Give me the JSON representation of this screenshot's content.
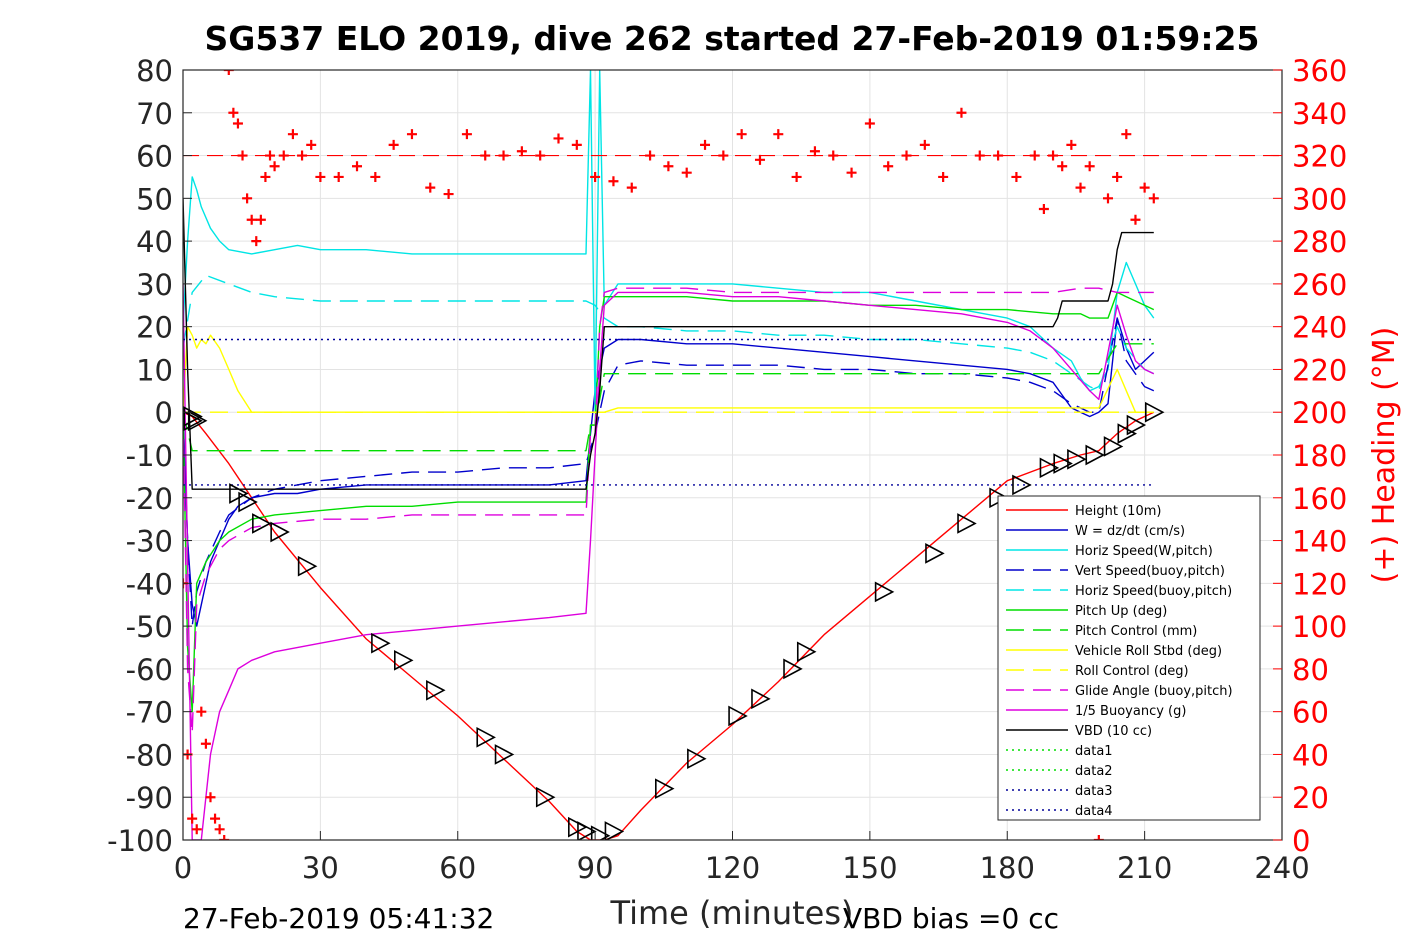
{
  "chart_data": {
    "type": "line",
    "title": "SG537 ELO 2019, dive 262 started 27-Feb-2019 01:59:25",
    "xlabel": "Time (minutes)",
    "ylabel_right": "(+) Heading (°M)",
    "xlim": [
      0,
      240
    ],
    "ylim_left": [
      -100,
      80
    ],
    "ylim_right": [
      0,
      360
    ],
    "xticks": [
      0,
      30,
      60,
      90,
      120,
      150,
      180,
      210,
      240
    ],
    "yticks_left": [
      80,
      70,
      60,
      50,
      40,
      30,
      20,
      10,
      0,
      -10,
      -20,
      -30,
      -40,
      -50,
      -60,
      -70,
      -80,
      -90,
      -100
    ],
    "yticks_right": [
      360,
      340,
      320,
      300,
      280,
      260,
      240,
      220,
      200,
      180,
      160,
      140,
      120,
      100,
      80,
      60,
      40,
      20,
      0
    ],
    "grid": true,
    "footer_left": "27-Feb-2019 05:41:32",
    "footer_right": "VBD bias =0 cc",
    "legend_position": "lower-right",
    "colors": {
      "height": "#ff0000",
      "w": "#0000cc",
      "horiz_w": "#00e5e5",
      "vert_buoy": "#0000cc",
      "horiz_buoy": "#00e5e5",
      "pitch_up": "#00dd00",
      "pitch_control": "#00dd00",
      "roll": "#ffff00",
      "roll_control": "#ffff00",
      "glide": "#dd00dd",
      "buoyancy": "#dd00dd",
      "vbd": "#000000",
      "heading": "#ff0000",
      "data4": "#000099"
    },
    "series": [
      {
        "name": "Height (10m)",
        "style": "solid",
        "color_key": "height",
        "x": [
          0,
          2,
          5,
          10,
          15,
          20,
          30,
          40,
          50,
          60,
          70,
          80,
          86,
          89,
          92,
          95,
          100,
          110,
          120,
          130,
          140,
          150,
          160,
          170,
          180,
          190,
          196,
          200,
          204,
          208,
          212
        ],
        "y": [
          0,
          -1,
          -5,
          -12,
          -20,
          -28,
          -41,
          -53,
          -62,
          -71,
          -81,
          -91,
          -98,
          -100,
          -100,
          -99,
          -93,
          -82,
          -73,
          -63,
          -52,
          -43,
          -34,
          -25,
          -16,
          -12,
          -10,
          -9,
          -5,
          -2,
          0
        ]
      },
      {
        "name": "W = dz/dt (cm/s)",
        "style": "solid",
        "color_key": "w",
        "x": [
          0,
          1,
          2,
          3,
          4,
          5,
          6,
          8,
          10,
          12,
          15,
          20,
          25,
          30,
          40,
          50,
          60,
          70,
          80,
          88,
          89,
          90,
          92,
          95,
          100,
          110,
          120,
          130,
          140,
          150,
          160,
          170,
          180,
          185,
          190,
          192,
          194,
          196,
          198,
          200,
          202,
          204,
          206,
          208,
          210,
          212
        ],
        "y": [
          0,
          -30,
          -45,
          -50,
          -45,
          -40,
          -35,
          -30,
          -25,
          -22,
          -20,
          -19,
          -19,
          -18,
          -17,
          -17,
          -17,
          -17,
          -17,
          -16,
          -5,
          5,
          15,
          17,
          17,
          16,
          16,
          15,
          14,
          13,
          12,
          11,
          10,
          9,
          7,
          4,
          1,
          0,
          -1,
          0,
          2,
          22,
          15,
          10,
          12,
          14
        ]
      },
      {
        "name": "Horiz Speed(W,pitch)",
        "style": "solid",
        "color_key": "horiz_w",
        "x": [
          0,
          1,
          2,
          3,
          4,
          6,
          8,
          10,
          15,
          20,
          25,
          30,
          40,
          50,
          60,
          70,
          80,
          88,
          89,
          90,
          91,
          92,
          95,
          100,
          110,
          120,
          130,
          140,
          150,
          160,
          170,
          180,
          185,
          190,
          194,
          196,
          198,
          200,
          202,
          204,
          206,
          208,
          210,
          212
        ],
        "y": [
          20,
          40,
          55,
          52,
          48,
          43,
          40,
          38,
          37,
          38,
          39,
          38,
          38,
          37,
          37,
          37,
          37,
          37,
          80,
          0,
          80,
          25,
          30,
          30,
          30,
          30,
          29,
          28,
          28,
          26,
          24,
          22,
          20,
          15,
          12,
          8,
          5,
          6,
          10,
          28,
          35,
          30,
          25,
          22
        ]
      },
      {
        "name": "Vert Speed(buoy,pitch)",
        "style": "dashed",
        "color_key": "vert_buoy",
        "x": [
          0,
          1,
          2,
          3,
          5,
          8,
          10,
          15,
          20,
          30,
          40,
          50,
          60,
          70,
          80,
          88,
          90,
          92,
          95,
          100,
          110,
          120,
          130,
          140,
          150,
          160,
          170,
          180,
          185,
          190,
          194,
          198,
          200,
          204,
          206,
          210,
          212
        ],
        "y": [
          0,
          -30,
          -50,
          -42,
          -35,
          -28,
          -24,
          -20,
          -18,
          -16,
          -15,
          -14,
          -14,
          -13,
          -13,
          -12,
          -5,
          5,
          11,
          12,
          11,
          11,
          11,
          10,
          10,
          9,
          9,
          8,
          7,
          5,
          2,
          0,
          0,
          22,
          12,
          6,
          5
        ]
      },
      {
        "name": "Horiz Speed(buoy,pitch)",
        "style": "dashed",
        "color_key": "horiz_buoy",
        "x": [
          0,
          2,
          5,
          10,
          15,
          20,
          30,
          40,
          50,
          60,
          70,
          80,
          88,
          90,
          92,
          95,
          100,
          110,
          120,
          130,
          140,
          150,
          160,
          170,
          180,
          185,
          190,
          194,
          198,
          200,
          204,
          206,
          210,
          212
        ],
        "y": [
          15,
          28,
          32,
          30,
          28,
          27,
          26,
          26,
          26,
          26,
          26,
          26,
          26,
          25,
          22,
          20,
          20,
          19,
          19,
          18,
          18,
          17,
          17,
          16,
          15,
          14,
          12,
          9,
          6,
          5,
          20,
          15,
          10,
          9
        ]
      },
      {
        "name": "Pitch Up (deg)",
        "style": "solid",
        "color_key": "pitch_up",
        "x": [
          0,
          1,
          2,
          3,
          5,
          8,
          10,
          15,
          20,
          30,
          40,
          50,
          60,
          70,
          80,
          88,
          89,
          90,
          91,
          92,
          95,
          100,
          110,
          120,
          130,
          140,
          150,
          160,
          170,
          180,
          190,
          196,
          198,
          200,
          202,
          204,
          206,
          208,
          210,
          212
        ],
        "y": [
          0,
          -55,
          -70,
          -40,
          -35,
          -30,
          -28,
          -25,
          -24,
          -23,
          -22,
          -22,
          -21,
          -21,
          -21,
          -21,
          -3,
          -3,
          20,
          27,
          27,
          27,
          27,
          26,
          26,
          26,
          25,
          25,
          24,
          24,
          23,
          23,
          22,
          22,
          22,
          28,
          27,
          26,
          25,
          24
        ]
      },
      {
        "name": "Pitch Control (mm)",
        "style": "dashed",
        "color_key": "pitch_control",
        "x": [
          0,
          2,
          5,
          10,
          30,
          60,
          88,
          89,
          90,
          92,
          95,
          100,
          120,
          140,
          160,
          180,
          200,
          204,
          206,
          208,
          212
        ],
        "y": [
          0,
          -9,
          -9,
          -9,
          -9,
          -9,
          -9,
          -3,
          -3,
          9,
          9,
          9,
          9,
          9,
          9,
          9,
          9,
          16,
          16,
          16,
          16
        ]
      },
      {
        "name": "Vehicle Roll Stbd (deg)",
        "style": "solid",
        "color_key": "roll",
        "x": [
          0,
          1,
          2,
          3,
          4,
          5,
          6,
          8,
          10,
          12,
          15,
          20,
          30,
          40,
          50,
          60,
          70,
          80,
          88,
          89,
          90,
          92,
          95,
          100,
          120,
          140,
          160,
          180,
          200,
          204,
          206,
          208,
          210,
          212
        ],
        "y": [
          0,
          20,
          18,
          15,
          17,
          16,
          18,
          15,
          10,
          5,
          0,
          0,
          0,
          0,
          0,
          0,
          0,
          0,
          0,
          0,
          0,
          0,
          1,
          1,
          1,
          1,
          1,
          1,
          1,
          10,
          5,
          0,
          0,
          0
        ]
      },
      {
        "name": "Roll Control (deg)",
        "style": "dashed",
        "color_key": "roll_control",
        "x": [
          0,
          5,
          10,
          20,
          30,
          60,
          88,
          90,
          92,
          95,
          120,
          150,
          180,
          200,
          204,
          208,
          212
        ],
        "y": [
          0,
          0,
          0,
          0,
          0,
          0,
          0,
          0,
          0,
          0,
          0,
          0,
          0,
          0,
          0,
          0,
          0
        ]
      },
      {
        "name": "Glide Angle (buoy,pitch)",
        "style": "dashed",
        "color_key": "glide",
        "x": [
          0,
          1,
          2,
          3,
          5,
          8,
          10,
          15,
          20,
          30,
          40,
          50,
          60,
          70,
          80,
          88,
          89,
          90,
          91,
          92,
          95,
          100,
          110,
          120,
          130,
          140,
          150,
          160,
          170,
          180,
          190,
          196,
          200,
          204,
          206,
          210,
          212
        ],
        "y": [
          0,
          -60,
          -75,
          -45,
          -38,
          -32,
          -30,
          -27,
          -26,
          -25,
          -25,
          -24,
          -24,
          -24,
          -24,
          -24,
          -5,
          -5,
          20,
          28,
          29,
          29,
          29,
          28,
          28,
          28,
          28,
          28,
          28,
          28,
          28,
          29,
          29,
          28,
          28,
          28,
          28
        ]
      },
      {
        "name": "1/5 Buoyancy (g)",
        "style": "solid",
        "color_key": "buoyancy",
        "x": [
          0,
          2,
          3,
          4,
          5,
          6,
          8,
          10,
          12,
          15,
          20,
          30,
          40,
          50,
          60,
          70,
          80,
          88,
          89,
          90,
          91,
          92,
          95,
          100,
          110,
          120,
          130,
          140,
          150,
          160,
          170,
          180,
          185,
          190,
          194,
          198,
          200,
          204,
          206,
          208,
          210,
          212
        ],
        "y": [
          30,
          -100,
          -100,
          -100,
          -90,
          -80,
          -70,
          -65,
          -60,
          -58,
          -56,
          -54,
          -52,
          -51,
          -50,
          -49,
          -48,
          -47,
          -30,
          -10,
          10,
          25,
          28,
          28,
          28,
          27,
          27,
          26,
          25,
          24,
          23,
          21,
          19,
          15,
          10,
          5,
          3,
          25,
          18,
          12,
          10,
          9
        ]
      },
      {
        "name": "VBD (10 cc)",
        "style": "solid",
        "color_key": "vbd",
        "x": [
          0,
          1,
          2,
          3,
          10,
          30,
          60,
          88,
          89,
          90,
          91,
          92,
          95,
          100,
          120,
          150,
          170,
          180,
          190,
          191,
          192,
          200,
          202,
          203,
          204,
          205,
          208,
          212
        ],
        "y": [
          50,
          10,
          -18,
          -18,
          -18,
          -18,
          -18,
          -18,
          -10,
          -5,
          5,
          20,
          20,
          20,
          20,
          20,
          20,
          20,
          20,
          22,
          26,
          26,
          26,
          30,
          38,
          42,
          42,
          42
        ]
      },
      {
        "name": "data1",
        "style": "dotted",
        "color_key": "pitch_up",
        "x": [],
        "y": []
      },
      {
        "name": "data2",
        "style": "dotted",
        "color_key": "pitch_up",
        "x": [],
        "y": []
      },
      {
        "name": "data3",
        "style": "dotted",
        "color_key": "data4",
        "x": [],
        "y": []
      },
      {
        "name": "data4",
        "style": "dotted",
        "color_key": "data4",
        "x": [
          0,
          212,
          null,
          0,
          212
        ],
        "y": [
          17,
          17,
          null,
          -17,
          -17
        ]
      }
    ],
    "heading": {
      "name": "(+) Heading (°M)",
      "axis": "right",
      "target": 320,
      "x": [
        0,
        1,
        2,
        3,
        4,
        5,
        6,
        7,
        8,
        9,
        10,
        11,
        12,
        13,
        14,
        15,
        16,
        17,
        18,
        19,
        20,
        22,
        24,
        26,
        28,
        30,
        34,
        38,
        42,
        46,
        50,
        54,
        58,
        62,
        66,
        70,
        74,
        78,
        82,
        86,
        90,
        94,
        98,
        102,
        106,
        110,
        114,
        118,
        122,
        126,
        130,
        134,
        138,
        142,
        146,
        150,
        154,
        158,
        162,
        166,
        170,
        174,
        178,
        182,
        186,
        188,
        190,
        192,
        194,
        196,
        198,
        200,
        202,
        204,
        206,
        208,
        210,
        212
      ],
      "y": [
        120,
        40,
        10,
        5,
        60,
        45,
        20,
        10,
        5,
        0,
        360,
        340,
        335,
        320,
        300,
        290,
        280,
        290,
        310,
        320,
        315,
        320,
        330,
        320,
        325,
        310,
        310,
        315,
        310,
        325,
        330,
        305,
        302,
        330,
        320,
        320,
        322,
        320,
        328,
        325,
        310,
        308,
        305,
        320,
        315,
        312,
        325,
        320,
        330,
        318,
        330,
        310,
        322,
        320,
        312,
        335,
        315,
        320,
        325,
        310,
        340,
        320,
        320,
        310,
        320,
        295,
        320,
        315,
        325,
        305,
        315,
        0,
        300,
        310,
        330,
        290,
        305,
        300
      ]
    },
    "markers": {
      "name": "Height (10m) markers",
      "x": [
        2,
        2,
        3,
        12,
        14,
        17,
        21,
        27,
        43,
        48,
        55,
        66,
        70,
        79,
        86,
        88,
        91,
        94,
        105,
        112,
        121,
        126,
        133,
        136,
        153,
        164,
        171,
        178,
        183,
        189,
        192,
        195,
        199,
        203,
        206,
        208,
        212
      ],
      "y": [
        -1,
        -2,
        -2,
        -19,
        -21,
        -26,
        -28,
        -36,
        -54,
        -58,
        -65,
        -76,
        -80,
        -90,
        -97,
        -98,
        -99,
        -98,
        -88,
        -81,
        -71,
        -67,
        -60,
        -56,
        -42,
        -33,
        -26,
        -20,
        -17,
        -13,
        -12,
        -11,
        -10,
        -8,
        -5,
        -3,
        0
      ]
    }
  }
}
